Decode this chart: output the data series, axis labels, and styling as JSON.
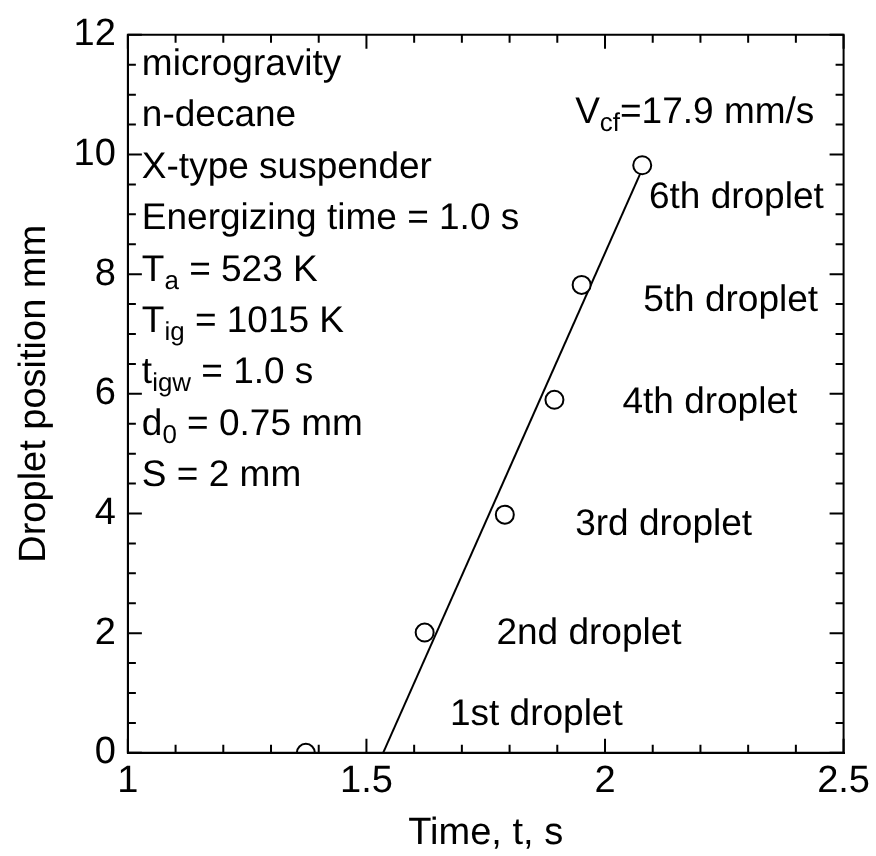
{
  "chart_data": {
    "type": "scatter",
    "xlabel": "Time, t, s",
    "ylabel": "Droplet position mm",
    "xlim": [
      1,
      2.5
    ],
    "ylim": [
      0,
      12
    ],
    "xticks": [
      1,
      {
        "value": 1.1,
        "label": null
      },
      {
        "value": 1.2,
        "label": null
      },
      {
        "value": 1.3,
        "label": null
      },
      {
        "value": 1.4,
        "label": null
      },
      1.5,
      {
        "value": 1.6,
        "label": null
      },
      {
        "value": 1.7,
        "label": null
      },
      {
        "value": 1.8,
        "label": null
      },
      {
        "value": 1.9,
        "label": null
      },
      2,
      {
        "value": 2.1,
        "label": null
      },
      {
        "value": 2.2,
        "label": null
      },
      {
        "value": 2.3,
        "label": null
      },
      {
        "value": 2.4,
        "label": null
      },
      2.5
    ],
    "yticks": [
      0,
      {
        "value": 0.5,
        "label": null
      },
      {
        "value": 1,
        "label": null
      },
      {
        "value": 1.5,
        "label": null
      },
      2,
      {
        "value": 2.5,
        "label": null
      },
      {
        "value": 3,
        "label": null
      },
      {
        "value": 3.5,
        "label": null
      },
      4,
      {
        "value": 4.5,
        "label": null
      },
      {
        "value": 5,
        "label": null
      },
      {
        "value": 5.5,
        "label": null
      },
      6,
      {
        "value": 6.5,
        "label": null
      },
      {
        "value": 7,
        "label": null
      },
      {
        "value": 7.5,
        "label": null
      },
      8,
      {
        "value": 8.5,
        "label": null
      },
      {
        "value": 9,
        "label": null
      },
      {
        "value": 9.5,
        "label": null
      },
      10,
      {
        "value": 10.5,
        "label": null
      },
      {
        "value": 11,
        "label": null
      },
      {
        "value": 11.5,
        "label": null
      },
      12
    ],
    "grid": false,
    "legend": false,
    "series": [
      {
        "type": "scatter",
        "marker": "circle",
        "color": "#000000",
        "x": [
          1.373,
          1.622,
          1.79,
          1.894,
          1.951,
          2.078
        ],
        "values": [
          0,
          2.01,
          3.98,
          5.9,
          7.82,
          9.82
        ]
      },
      {
        "type": "line",
        "marker": "none",
        "line_style": "solid",
        "color": "#000000",
        "x": [
          1.535,
          2.075
        ],
        "values": [
          0,
          9.7
        ]
      }
    ],
    "annotations": [
      "microgravity",
      "n-decane",
      "X-type suspender",
      "Energizing time = 1.0 s",
      "T$_{a}$ = 523 K",
      "T$_{ig}$ = 1015 K",
      "t$_{igw}$ = 1.0 s",
      "d$_{0}$ = 0.75 mm",
      "S = 2 mm",
      "V$_{cf}$=17.9 mm/s",
      "1st droplet",
      "2nd droplet",
      "3rd droplet",
      "4th droplet",
      "5th droplet",
      "6th droplet"
    ]
  }
}
